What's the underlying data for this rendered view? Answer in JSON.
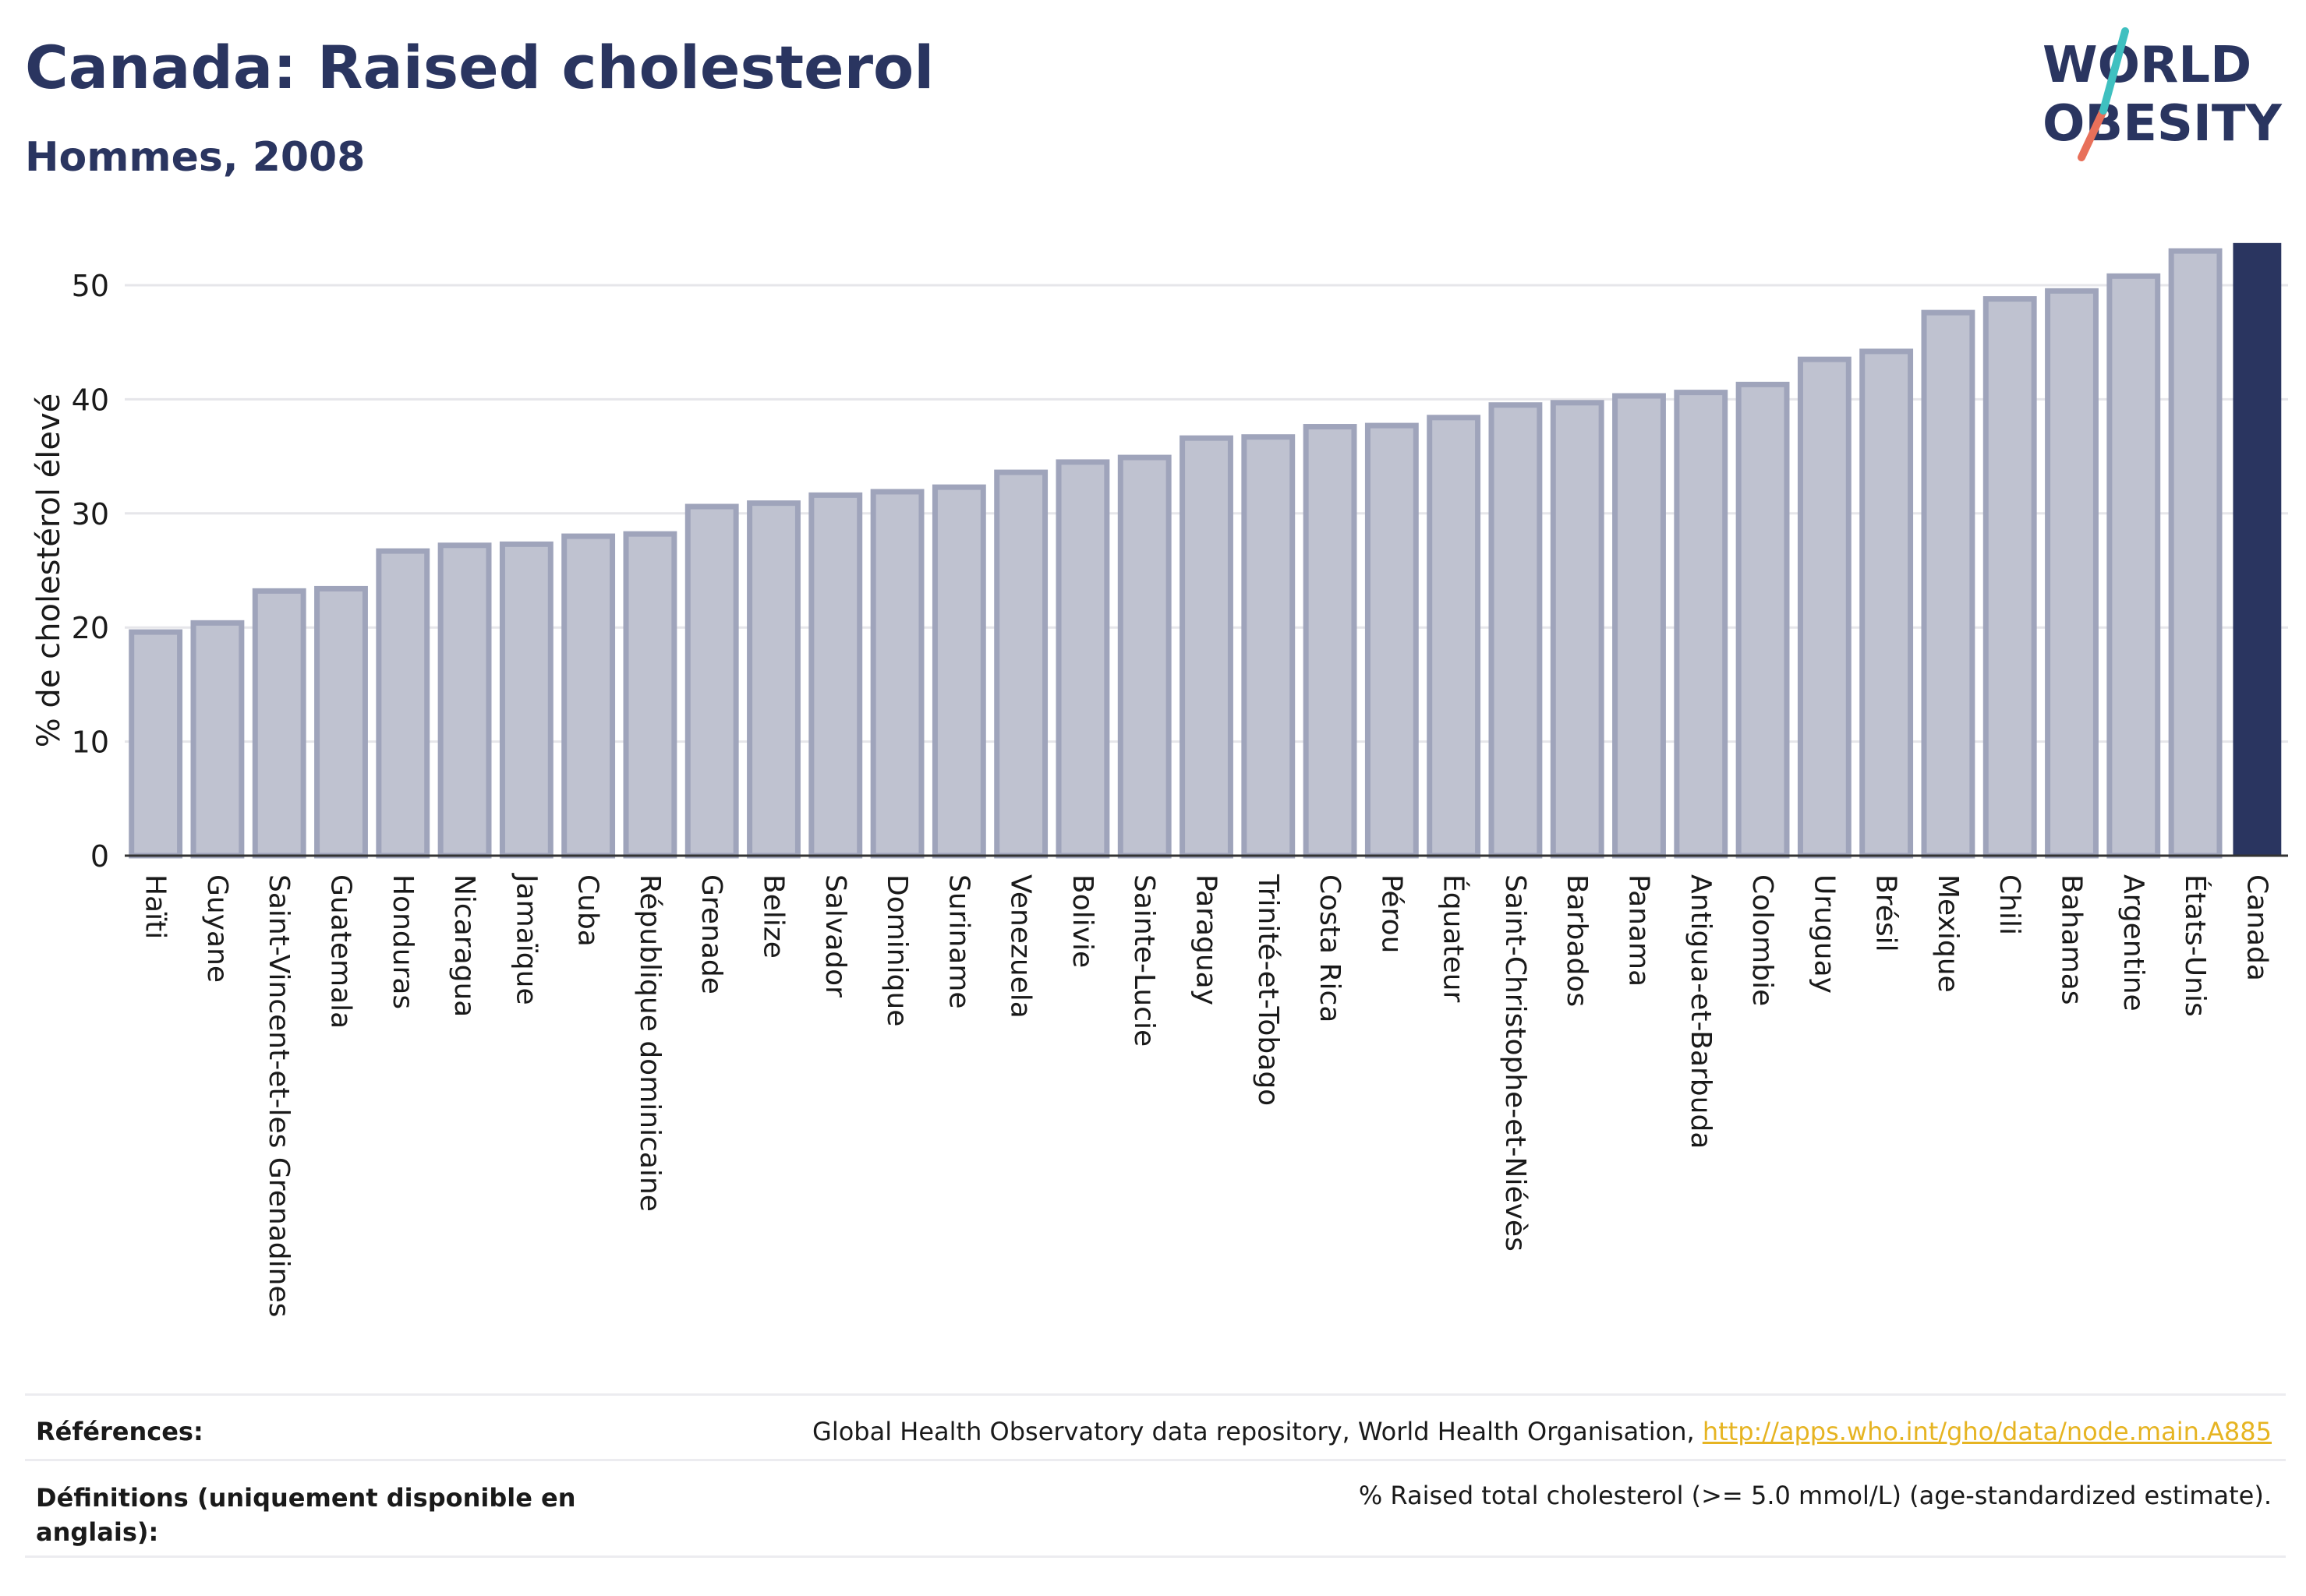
{
  "header": {
    "title": "Canada: Raised cholesterol",
    "subtitle": "Hommes, 2008"
  },
  "logo": {
    "line1": "WORLD",
    "line2": "OBESITY"
  },
  "chart_data": {
    "type": "bar",
    "ylabel": "% de cholestérol élevé",
    "ylim": [
      0,
      55
    ],
    "yticks": [
      0,
      10,
      20,
      30,
      40,
      50
    ],
    "grid": true,
    "highlight": "Canada",
    "colors": {
      "bar": "#bfc2d0",
      "bar_edge": "#9fa4bb",
      "highlight": "#2a3560"
    },
    "categories": [
      "Haïti",
      "Guyane",
      "Saint-Vincent-et-les Grenadines",
      "Guatemala",
      "Honduras",
      "Nicaragua",
      "Jamaïque",
      "Cuba",
      "République dominicaine",
      "Grenade",
      "Belize",
      "Salvador",
      "Dominique",
      "Suriname",
      "Venezuela",
      "Bolivie",
      "Sainte-Lucie",
      "Paraguay",
      "Trinité-et-Tobago",
      "Costa Rica",
      "Pérou",
      "Équateur",
      "Saint-Christophe-et-Niévès",
      "Barbados",
      "Panama",
      "Antigua-et-Barbuda",
      "Colombie",
      "Uruguay",
      "Brésil",
      "Mexique",
      "Chili",
      "Bahamas",
      "Argentine",
      "États-Unis",
      "Canada"
    ],
    "values": [
      19.6,
      20.4,
      23.2,
      23.4,
      26.7,
      27.2,
      27.3,
      28.0,
      28.2,
      30.6,
      30.9,
      31.6,
      31.9,
      32.3,
      33.6,
      34.5,
      34.9,
      36.6,
      36.7,
      37.6,
      37.7,
      38.4,
      39.5,
      39.7,
      40.3,
      40.6,
      41.3,
      43.5,
      44.2,
      47.6,
      48.8,
      49.5,
      50.8,
      53.0,
      53.7
    ]
  },
  "footer": {
    "references_label": "Références:",
    "references_text": "Global Health Observatory data repository, World Health Organisation, ",
    "references_link": "http://apps.who.int/gho/data/node.main.A885",
    "definitions_label": "Définitions (uniquement disponible en anglais):",
    "definitions_text": "% Raised total cholesterol (>= 5.0 mmol/L) (age-standardized estimate)."
  }
}
